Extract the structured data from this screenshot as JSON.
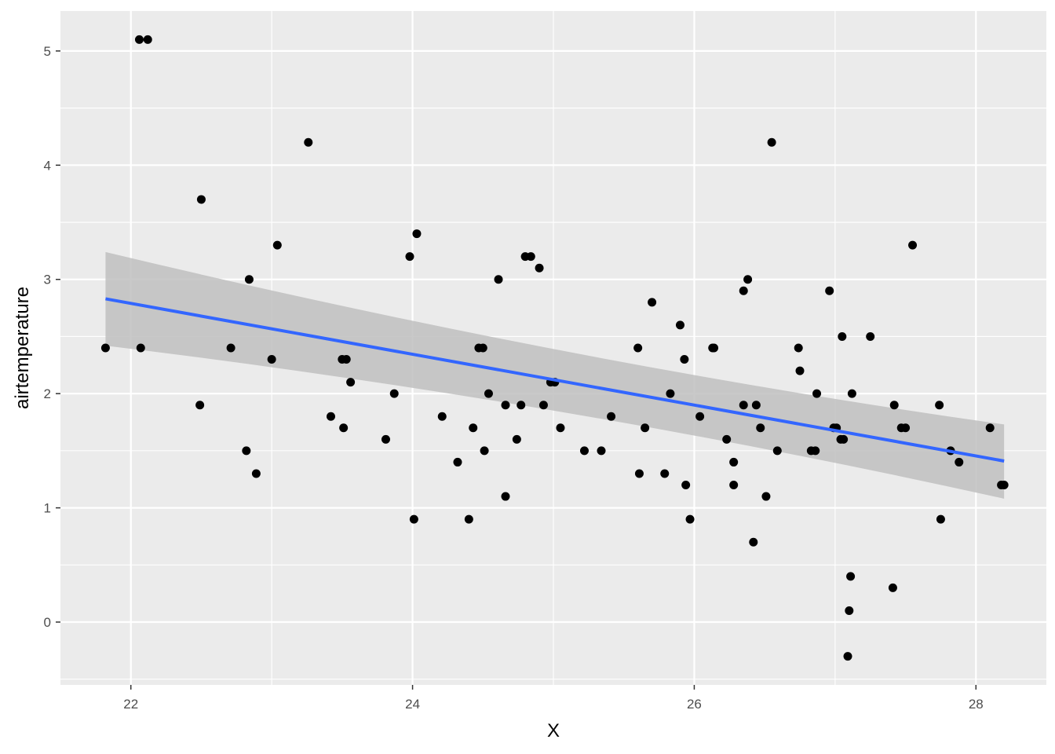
{
  "chart_data": {
    "type": "scatter",
    "xlabel": "X",
    "ylabel": "airtemperature",
    "xlim": [
      21.5,
      28.5
    ],
    "ylim": [
      -0.55,
      5.35
    ],
    "x_ticks": [
      22,
      24,
      26,
      28
    ],
    "y_ticks": [
      0,
      1,
      2,
      3,
      4,
      5
    ],
    "x_tick_labels": [
      "22",
      "24",
      "26",
      "28"
    ],
    "y_tick_labels": [
      "0",
      "1",
      "2",
      "3",
      "4",
      "5"
    ],
    "grid": true,
    "legend": "none",
    "colors": {
      "panel": "#ebebeb",
      "grid": "#ffffff",
      "points": "#000000",
      "fit_line": "#3366ff",
      "ribbon": "#bfbfbf"
    },
    "points": [
      {
        "x": 21.82,
        "y": 2.4
      },
      {
        "x": 22.06,
        "y": 5.1
      },
      {
        "x": 22.12,
        "y": 5.1
      },
      {
        "x": 22.07,
        "y": 2.4
      },
      {
        "x": 22.49,
        "y": 1.9
      },
      {
        "x": 22.5,
        "y": 3.7
      },
      {
        "x": 22.71,
        "y": 2.4
      },
      {
        "x": 22.82,
        "y": 1.5
      },
      {
        "x": 22.84,
        "y": 3.0
      },
      {
        "x": 22.89,
        "y": 1.3
      },
      {
        "x": 23.0,
        "y": 2.3
      },
      {
        "x": 23.04,
        "y": 3.3
      },
      {
        "x": 23.26,
        "y": 4.2
      },
      {
        "x": 23.42,
        "y": 1.8
      },
      {
        "x": 23.5,
        "y": 2.3
      },
      {
        "x": 23.53,
        "y": 2.3
      },
      {
        "x": 23.51,
        "y": 1.7
      },
      {
        "x": 23.56,
        "y": 2.1
      },
      {
        "x": 23.81,
        "y": 1.6
      },
      {
        "x": 23.87,
        "y": 2.0
      },
      {
        "x": 23.98,
        "y": 3.2
      },
      {
        "x": 24.03,
        "y": 3.4
      },
      {
        "x": 24.01,
        "y": 0.9
      },
      {
        "x": 24.21,
        "y": 1.8
      },
      {
        "x": 24.32,
        "y": 1.4
      },
      {
        "x": 24.4,
        "y": 0.9
      },
      {
        "x": 24.43,
        "y": 1.7
      },
      {
        "x": 24.47,
        "y": 2.4
      },
      {
        "x": 24.5,
        "y": 2.4
      },
      {
        "x": 24.51,
        "y": 1.5
      },
      {
        "x": 24.54,
        "y": 2.0
      },
      {
        "x": 24.61,
        "y": 3.0
      },
      {
        "x": 24.66,
        "y": 1.9
      },
      {
        "x": 24.66,
        "y": 1.1
      },
      {
        "x": 24.74,
        "y": 1.6
      },
      {
        "x": 24.77,
        "y": 1.9
      },
      {
        "x": 24.8,
        "y": 3.2
      },
      {
        "x": 24.84,
        "y": 3.2
      },
      {
        "x": 24.9,
        "y": 3.1
      },
      {
        "x": 24.93,
        "y": 1.9
      },
      {
        "x": 24.98,
        "y": 2.1
      },
      {
        "x": 25.01,
        "y": 2.1
      },
      {
        "x": 25.05,
        "y": 1.7
      },
      {
        "x": 25.22,
        "y": 1.5
      },
      {
        "x": 25.34,
        "y": 1.5
      },
      {
        "x": 25.41,
        "y": 1.8
      },
      {
        "x": 25.6,
        "y": 2.4
      },
      {
        "x": 25.61,
        "y": 1.3
      },
      {
        "x": 25.65,
        "y": 1.7
      },
      {
        "x": 25.7,
        "y": 2.8
      },
      {
        "x": 25.79,
        "y": 1.3
      },
      {
        "x": 25.83,
        "y": 2.0
      },
      {
        "x": 25.9,
        "y": 2.6
      },
      {
        "x": 25.93,
        "y": 2.3
      },
      {
        "x": 25.94,
        "y": 1.2
      },
      {
        "x": 25.97,
        "y": 0.9
      },
      {
        "x": 26.04,
        "y": 1.8
      },
      {
        "x": 26.13,
        "y": 2.4
      },
      {
        "x": 26.14,
        "y": 2.4
      },
      {
        "x": 26.23,
        "y": 1.6
      },
      {
        "x": 26.28,
        "y": 1.4
      },
      {
        "x": 26.28,
        "y": 1.2
      },
      {
        "x": 26.35,
        "y": 2.9
      },
      {
        "x": 26.35,
        "y": 1.9
      },
      {
        "x": 26.38,
        "y": 3.0
      },
      {
        "x": 26.42,
        "y": 0.7
      },
      {
        "x": 26.44,
        "y": 1.9
      },
      {
        "x": 26.47,
        "y": 1.7
      },
      {
        "x": 26.51,
        "y": 1.1
      },
      {
        "x": 26.55,
        "y": 4.2
      },
      {
        "x": 26.59,
        "y": 1.5
      },
      {
        "x": 26.74,
        "y": 2.4
      },
      {
        "x": 26.75,
        "y": 2.2
      },
      {
        "x": 26.83,
        "y": 1.5
      },
      {
        "x": 26.86,
        "y": 1.5
      },
      {
        "x": 26.87,
        "y": 2.0
      },
      {
        "x": 26.96,
        "y": 2.9
      },
      {
        "x": 26.99,
        "y": 1.7
      },
      {
        "x": 27.01,
        "y": 1.7
      },
      {
        "x": 27.04,
        "y": 1.6
      },
      {
        "x": 27.06,
        "y": 1.6
      },
      {
        "x": 27.05,
        "y": 2.5
      },
      {
        "x": 27.09,
        "y": -0.3
      },
      {
        "x": 27.1,
        "y": 0.1
      },
      {
        "x": 27.11,
        "y": 0.4
      },
      {
        "x": 27.12,
        "y": 2.0
      },
      {
        "x": 27.25,
        "y": 2.5
      },
      {
        "x": 27.41,
        "y": 0.3
      },
      {
        "x": 27.42,
        "y": 1.9
      },
      {
        "x": 27.47,
        "y": 1.7
      },
      {
        "x": 27.5,
        "y": 1.7
      },
      {
        "x": 27.55,
        "y": 3.3
      },
      {
        "x": 27.74,
        "y": 1.9
      },
      {
        "x": 27.75,
        "y": 0.9
      },
      {
        "x": 27.82,
        "y": 1.5
      },
      {
        "x": 27.88,
        "y": 1.4
      },
      {
        "x": 28.1,
        "y": 1.7
      },
      {
        "x": 28.18,
        "y": 1.2
      },
      {
        "x": 28.2,
        "y": 1.2
      }
    ],
    "fit": {
      "x": [
        21.82,
        28.2
      ],
      "y": [
        2.83,
        1.41
      ],
      "ci_lower": [
        2.42,
        1.08
      ],
      "ci_upper": [
        3.24,
        1.73
      ],
      "ci_mid_x": 25.1,
      "ci_mid_lower": 1.97,
      "ci_mid_upper": 2.23
    }
  }
}
